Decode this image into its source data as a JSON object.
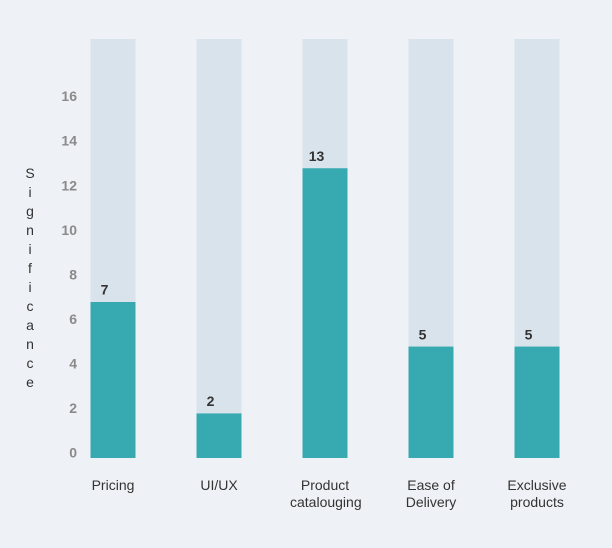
{
  "chart_data": {
    "type": "bar",
    "y_label": "Significance",
    "categories": [
      "Pricing",
      "UI/UX",
      "Product catalouging",
      "Ease of Delivery",
      "Exclusive products"
    ],
    "values": [
      7,
      2,
      13,
      5,
      5
    ],
    "color": "#36a9b1",
    "track_color": "#d9e3ec",
    "ylim": [
      0,
      18.8
    ],
    "yticks": [
      0,
      2,
      4,
      6,
      8,
      10,
      12,
      14,
      16
    ],
    "grid": false
  }
}
